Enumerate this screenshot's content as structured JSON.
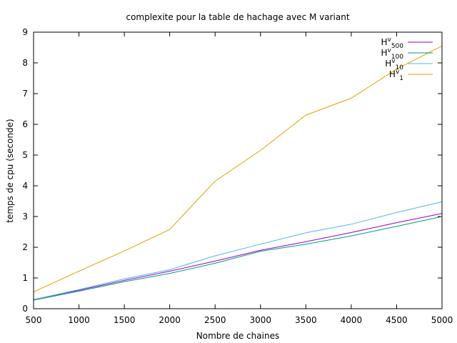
{
  "chart_data": {
    "type": "line",
    "title": "complexite pour la table de hachage avec M variant",
    "xlabel": "Nombre de chaines",
    "ylabel": "temps de cpu (seconde)",
    "xlim": [
      500,
      5000
    ],
    "ylim": [
      0,
      9
    ],
    "x_ticks": [
      "500",
      "1000",
      "1500",
      "2000",
      "2500",
      "3000",
      "3500",
      "4000",
      "4500",
      "5000"
    ],
    "y_ticks": [
      "0",
      "1",
      "2",
      "3",
      "4",
      "5",
      "6",
      "7",
      "8",
      "9"
    ],
    "grid": false,
    "legend_position": "top-right",
    "x": [
      500,
      1000,
      1500,
      2000,
      2500,
      3000,
      3500,
      4000,
      4500,
      5000
    ],
    "series": [
      {
        "base": "H",
        "sup": "v",
        "sub": "500",
        "color": "#9400d3",
        "values": [
          0.3,
          0.6,
          0.92,
          1.22,
          1.55,
          1.9,
          2.18,
          2.48,
          2.8,
          3.1
        ]
      },
      {
        "base": "H",
        "sup": "v",
        "sub": "100",
        "color": "#009e73",
        "values": [
          0.28,
          0.57,
          0.88,
          1.15,
          1.48,
          1.87,
          2.1,
          2.37,
          2.68,
          3.0
        ]
      },
      {
        "base": "H",
        "sup": "v",
        "sub": "10",
        "color": "#56b4e9",
        "values": [
          0.3,
          0.62,
          0.97,
          1.27,
          1.72,
          2.1,
          2.47,
          2.75,
          3.13,
          3.48
        ]
      },
      {
        "base": "H",
        "sup": "v",
        "sub": "1",
        "color": "#e69f00",
        "values": [
          0.55,
          1.22,
          1.88,
          2.58,
          4.15,
          5.15,
          6.3,
          6.85,
          7.8,
          8.55
        ]
      }
    ]
  }
}
